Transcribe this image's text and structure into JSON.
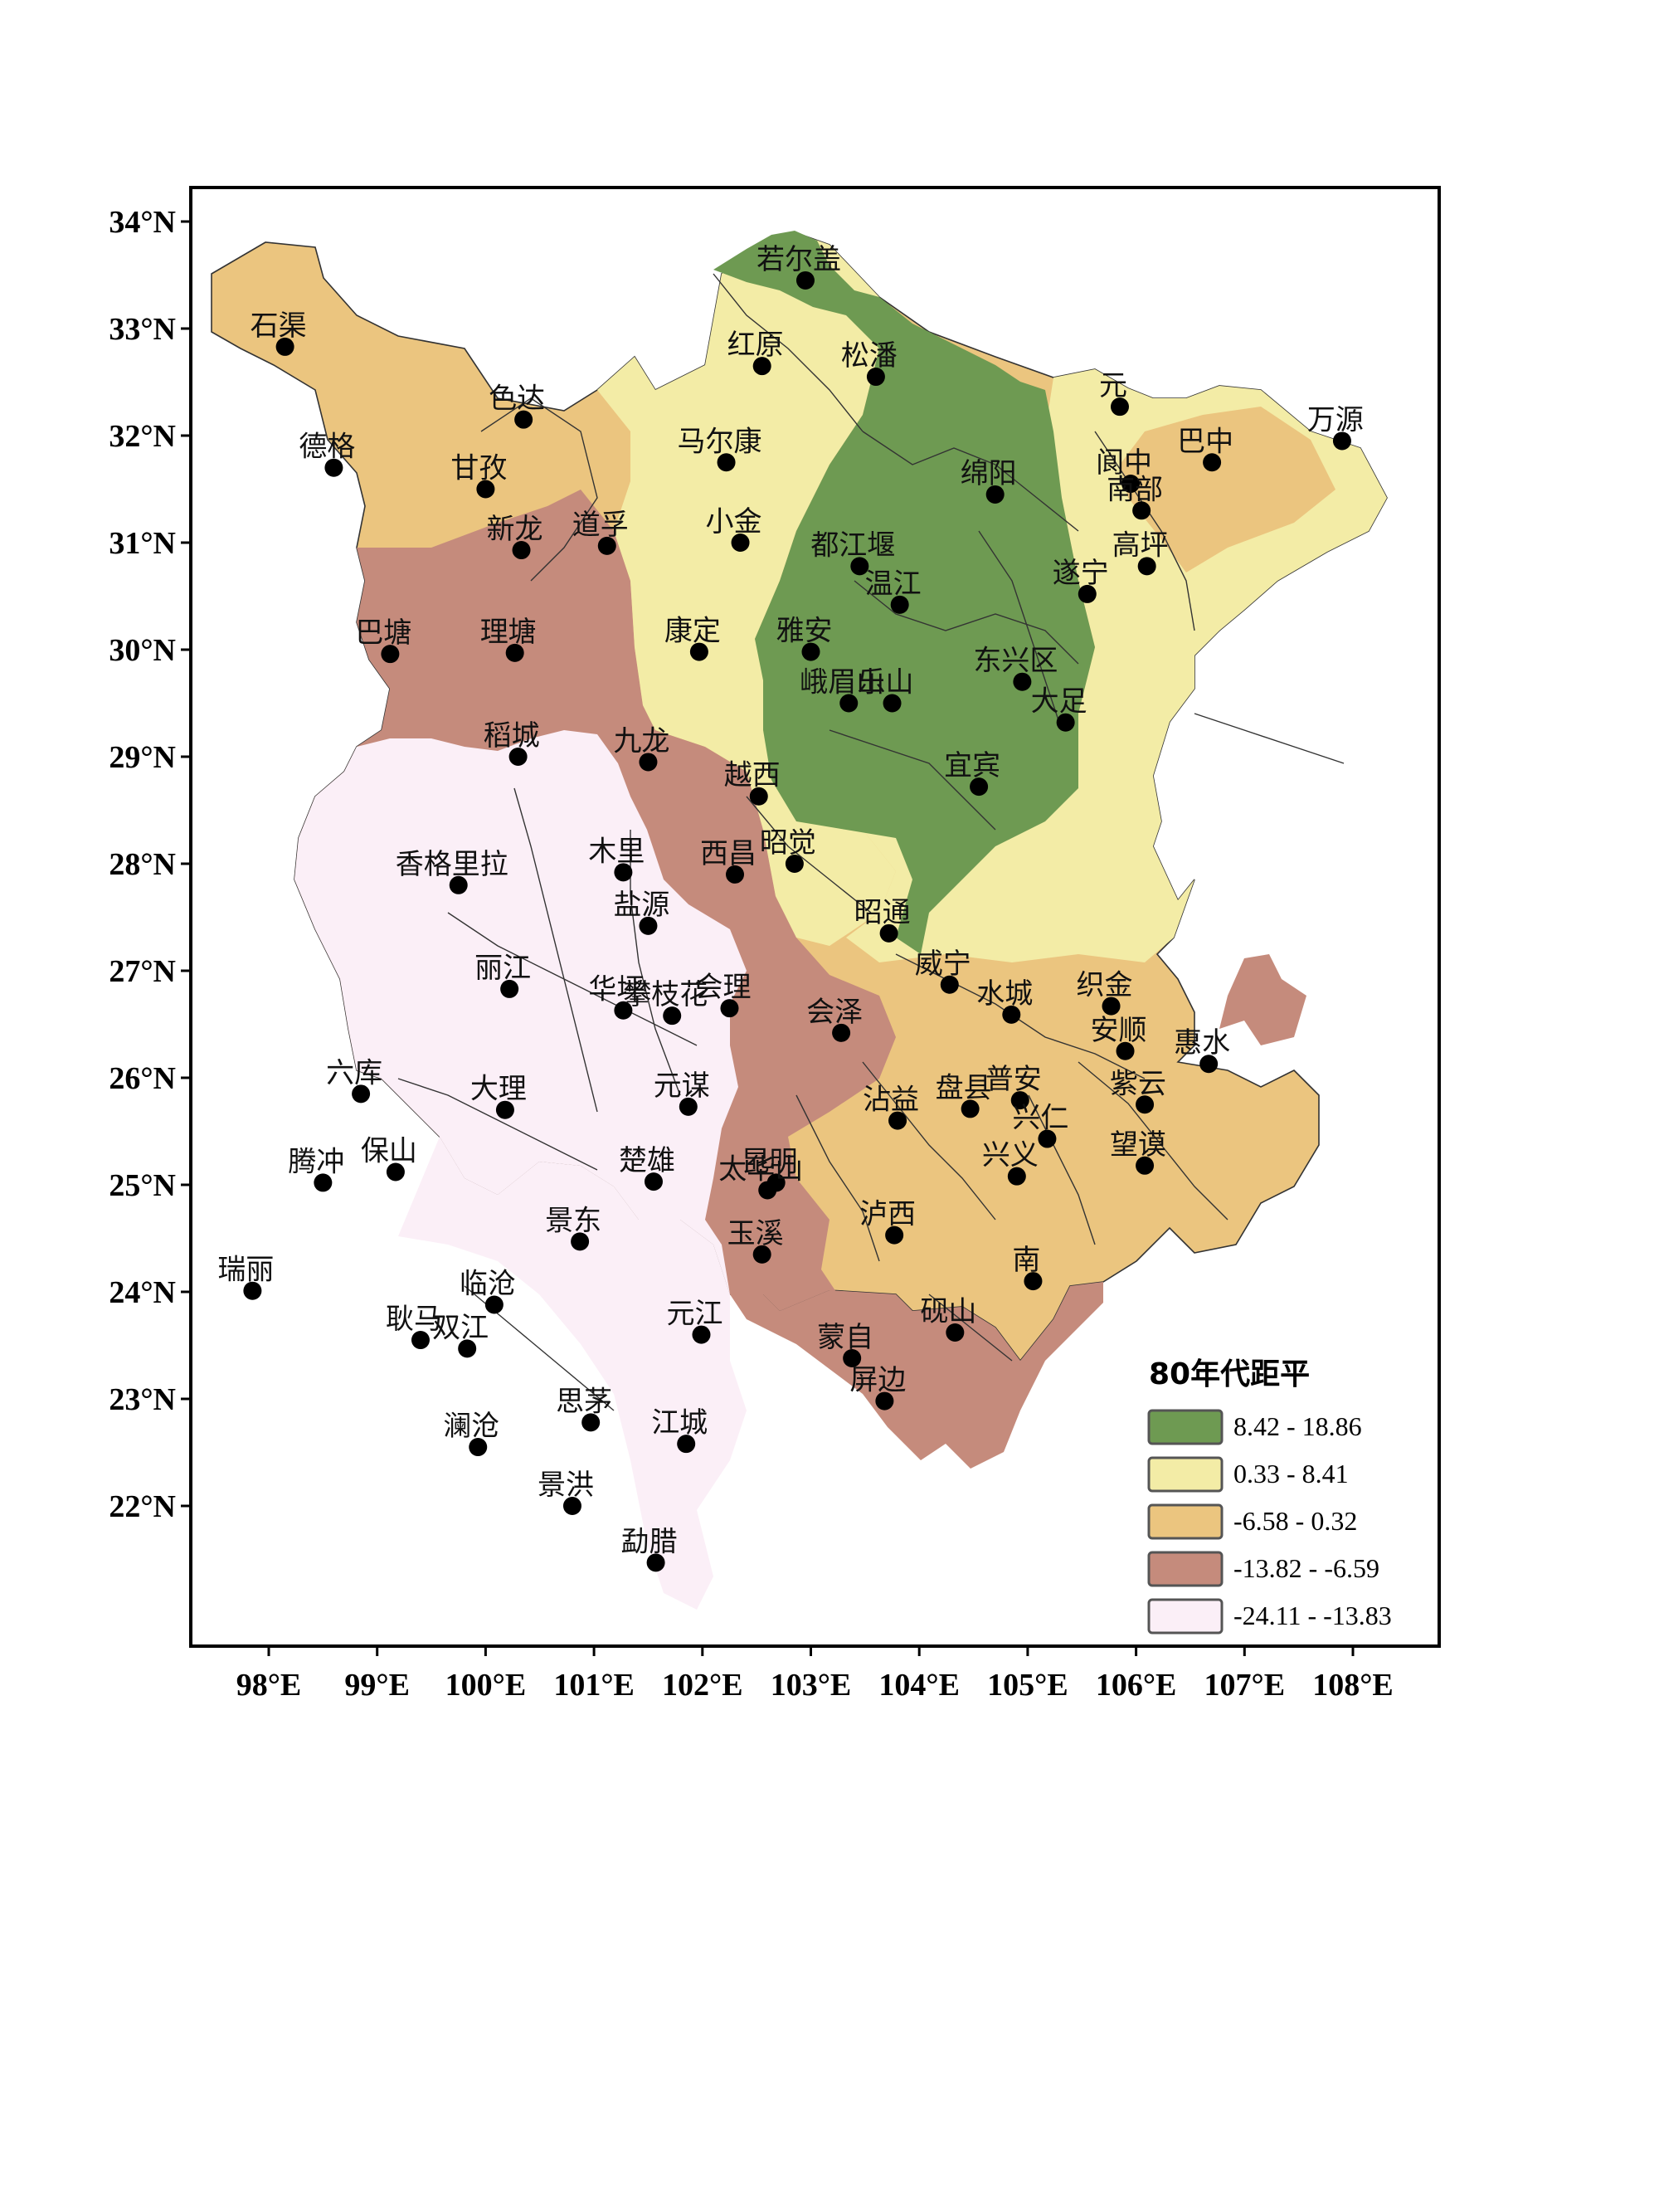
{
  "map": {
    "bounds": {
      "lon": [
        97.25,
        108.85
      ],
      "lat": [
        21.0,
        34.4
      ]
    },
    "lon_ticks": [
      {
        "value": 98,
        "label": "98°E"
      },
      {
        "value": 99,
        "label": "99°E"
      },
      {
        "value": 100,
        "label": "100°E"
      },
      {
        "value": 101,
        "label": "101°E"
      },
      {
        "value": 102,
        "label": "102°E"
      },
      {
        "value": 103,
        "label": "103°E"
      },
      {
        "value": 104,
        "label": "104°E"
      },
      {
        "value": 105,
        "label": "105°E"
      },
      {
        "value": 106,
        "label": "106°E"
      },
      {
        "value": 107,
        "label": "107°E"
      },
      {
        "value": 108,
        "label": "108°E"
      }
    ],
    "lat_ticks": [
      {
        "value": 34,
        "label": "34°N"
      },
      {
        "value": 33,
        "label": "33°N"
      },
      {
        "value": 32,
        "label": "32°N"
      },
      {
        "value": 31,
        "label": "31°N"
      },
      {
        "value": 30,
        "label": "30°N"
      },
      {
        "value": 29,
        "label": "29°N"
      },
      {
        "value": 28,
        "label": "28°N"
      },
      {
        "value": 27,
        "label": "27°N"
      },
      {
        "value": 26,
        "label": "26°N"
      },
      {
        "value": 25,
        "label": "25°N"
      },
      {
        "value": 24,
        "label": "24°N"
      },
      {
        "value": 23,
        "label": "23°N"
      },
      {
        "value": 22,
        "label": "22°N"
      }
    ],
    "legend": {
      "title": "80年代距平",
      "classes": [
        {
          "label": "8.42 - 18.86",
          "color": "#6e9a52"
        },
        {
          "label": "0.33 - 8.41",
          "color": "#f3eca6"
        },
        {
          "label": "-6.58 - 0.32",
          "color": "#ebc57f"
        },
        {
          "label": "-13.82 - -6.59",
          "color": "#c58b7c"
        },
        {
          "label": "-24.11 - -13.83",
          "color": "#fbeff7"
        }
      ]
    },
    "stations": [
      {
        "name": "若尔盖",
        "lon": 102.95,
        "lat": 33.45
      },
      {
        "name": "石渠",
        "lon": 98.15,
        "lat": 32.83
      },
      {
        "name": "红原",
        "lon": 102.55,
        "lat": 32.65
      },
      {
        "name": "松潘",
        "lon": 103.6,
        "lat": 32.55
      },
      {
        "name": "色达",
        "lon": 100.35,
        "lat": 32.15
      },
      {
        "name": "万源",
        "lon": 107.9,
        "lat": 31.95
      },
      {
        "name": "德格",
        "lon": 98.6,
        "lat": 31.7
      },
      {
        "name": "马尔康",
        "lon": 102.22,
        "lat": 31.75
      },
      {
        "name": "元",
        "lon": 105.85,
        "lat": 32.27
      },
      {
        "name": "巴中",
        "lon": 106.7,
        "lat": 31.75
      },
      {
        "name": "甘孜",
        "lon": 100.0,
        "lat": 31.5
      },
      {
        "name": "阆中",
        "lon": 105.95,
        "lat": 31.55
      },
      {
        "name": "南部",
        "lon": 106.05,
        "lat": 31.3
      },
      {
        "name": "绵阳",
        "lon": 104.7,
        "lat": 31.45
      },
      {
        "name": "新龙",
        "lon": 100.33,
        "lat": 30.93
      },
      {
        "name": "道孚",
        "lon": 101.12,
        "lat": 30.97
      },
      {
        "name": "小金",
        "lon": 102.35,
        "lat": 31.0
      },
      {
        "name": "遂宁",
        "lon": 105.55,
        "lat": 30.52
      },
      {
        "name": "高坪",
        "lon": 106.1,
        "lat": 30.78
      },
      {
        "name": "都江堰",
        "lon": 103.45,
        "lat": 30.78
      },
      {
        "name": "温江",
        "lon": 103.82,
        "lat": 30.42
      },
      {
        "name": "巴塘",
        "lon": 99.12,
        "lat": 29.96
      },
      {
        "name": "理塘",
        "lon": 100.27,
        "lat": 29.97
      },
      {
        "name": "康定",
        "lon": 101.97,
        "lat": 29.98
      },
      {
        "name": "雅安",
        "lon": 103.0,
        "lat": 29.98
      },
      {
        "name": "东兴区",
        "lon": 104.95,
        "lat": 29.7
      },
      {
        "name": "峨眉山",
        "lon": 103.35,
        "lat": 29.5
      },
      {
        "name": "乐山",
        "lon": 103.75,
        "lat": 29.5
      },
      {
        "name": "大足",
        "lon": 105.35,
        "lat": 29.32
      },
      {
        "name": "稻城",
        "lon": 100.3,
        "lat": 29.0
      },
      {
        "name": "九龙",
        "lon": 101.5,
        "lat": 28.95
      },
      {
        "name": "越西",
        "lon": 102.52,
        "lat": 28.63
      },
      {
        "name": "宜宾",
        "lon": 104.55,
        "lat": 28.72
      },
      {
        "name": "香格里拉",
        "lon": 99.75,
        "lat": 27.8
      },
      {
        "name": "木里",
        "lon": 101.27,
        "lat": 27.92
      },
      {
        "name": "西昌",
        "lon": 102.3,
        "lat": 27.9
      },
      {
        "name": "昭觉",
        "lon": 102.85,
        "lat": 28.0
      },
      {
        "name": "盐源",
        "lon": 101.5,
        "lat": 27.42
      },
      {
        "name": "昭通",
        "lon": 103.72,
        "lat": 27.35
      },
      {
        "name": "威宁",
        "lon": 104.28,
        "lat": 26.87
      },
      {
        "name": "丽江",
        "lon": 100.22,
        "lat": 26.83
      },
      {
        "name": "华坪",
        "lon": 101.27,
        "lat": 26.63
      },
      {
        "name": "会理",
        "lon": 102.25,
        "lat": 26.65
      },
      {
        "name": "攀枝花",
        "lon": 101.72,
        "lat": 26.58
      },
      {
        "name": "会泽",
        "lon": 103.28,
        "lat": 26.42
      },
      {
        "name": "水城",
        "lon": 104.85,
        "lat": 26.59
      },
      {
        "name": "织金",
        "lon": 105.77,
        "lat": 26.67
      },
      {
        "name": "安顺",
        "lon": 105.9,
        "lat": 26.25
      },
      {
        "name": "惠水",
        "lon": 106.67,
        "lat": 26.13
      },
      {
        "name": "六库",
        "lon": 98.85,
        "lat": 25.85
      },
      {
        "name": "大理",
        "lon": 100.18,
        "lat": 25.7
      },
      {
        "name": "元谋",
        "lon": 101.87,
        "lat": 25.73
      },
      {
        "name": "沾益",
        "lon": 103.8,
        "lat": 25.6
      },
      {
        "name": "盘县",
        "lon": 104.47,
        "lat": 25.71
      },
      {
        "name": "普安",
        "lon": 104.93,
        "lat": 25.79
      },
      {
        "name": "紫云",
        "lon": 106.08,
        "lat": 25.75
      },
      {
        "name": "兴仁",
        "lon": 105.18,
        "lat": 25.43
      },
      {
        "name": "望谟",
        "lon": 106.08,
        "lat": 25.18
      },
      {
        "name": "昆明",
        "lon": 102.68,
        "lat": 25.02
      },
      {
        "name": "兴义",
        "lon": 104.9,
        "lat": 25.08
      },
      {
        "name": "腾冲",
        "lon": 98.5,
        "lat": 25.02
      },
      {
        "name": "保山",
        "lon": 99.17,
        "lat": 25.12
      },
      {
        "name": "楚雄",
        "lon": 101.55,
        "lat": 25.03
      },
      {
        "name": "太华山",
        "lon": 102.6,
        "lat": 24.95
      },
      {
        "name": "景东",
        "lon": 100.87,
        "lat": 24.47
      },
      {
        "name": "泸西",
        "lon": 103.77,
        "lat": 24.53
      },
      {
        "name": "玉溪",
        "lon": 102.55,
        "lat": 24.35
      },
      {
        "name": "瑞丽",
        "lon": 97.85,
        "lat": 24.01
      },
      {
        "name": "南",
        "lon": 105.05,
        "lat": 24.1
      },
      {
        "name": "临沧",
        "lon": 100.08,
        "lat": 23.88
      },
      {
        "name": "元江",
        "lon": 101.99,
        "lat": 23.6
      },
      {
        "name": "蒙自",
        "lon": 103.38,
        "lat": 23.38
      },
      {
        "name": "砚山",
        "lon": 104.33,
        "lat": 23.62
      },
      {
        "name": "耿马",
        "lon": 99.4,
        "lat": 23.55
      },
      {
        "name": "双江",
        "lon": 99.83,
        "lat": 23.47
      },
      {
        "name": "屏边",
        "lon": 103.68,
        "lat": 22.98
      },
      {
        "name": "思茅",
        "lon": 100.97,
        "lat": 22.78
      },
      {
        "name": "澜沧",
        "lon": 99.93,
        "lat": 22.55
      },
      {
        "name": "江城",
        "lon": 101.85,
        "lat": 22.58
      },
      {
        "name": "景洪",
        "lon": 100.8,
        "lat": 22.0
      },
      {
        "name": "勐腊",
        "lon": 101.57,
        "lat": 21.47
      }
    ]
  }
}
